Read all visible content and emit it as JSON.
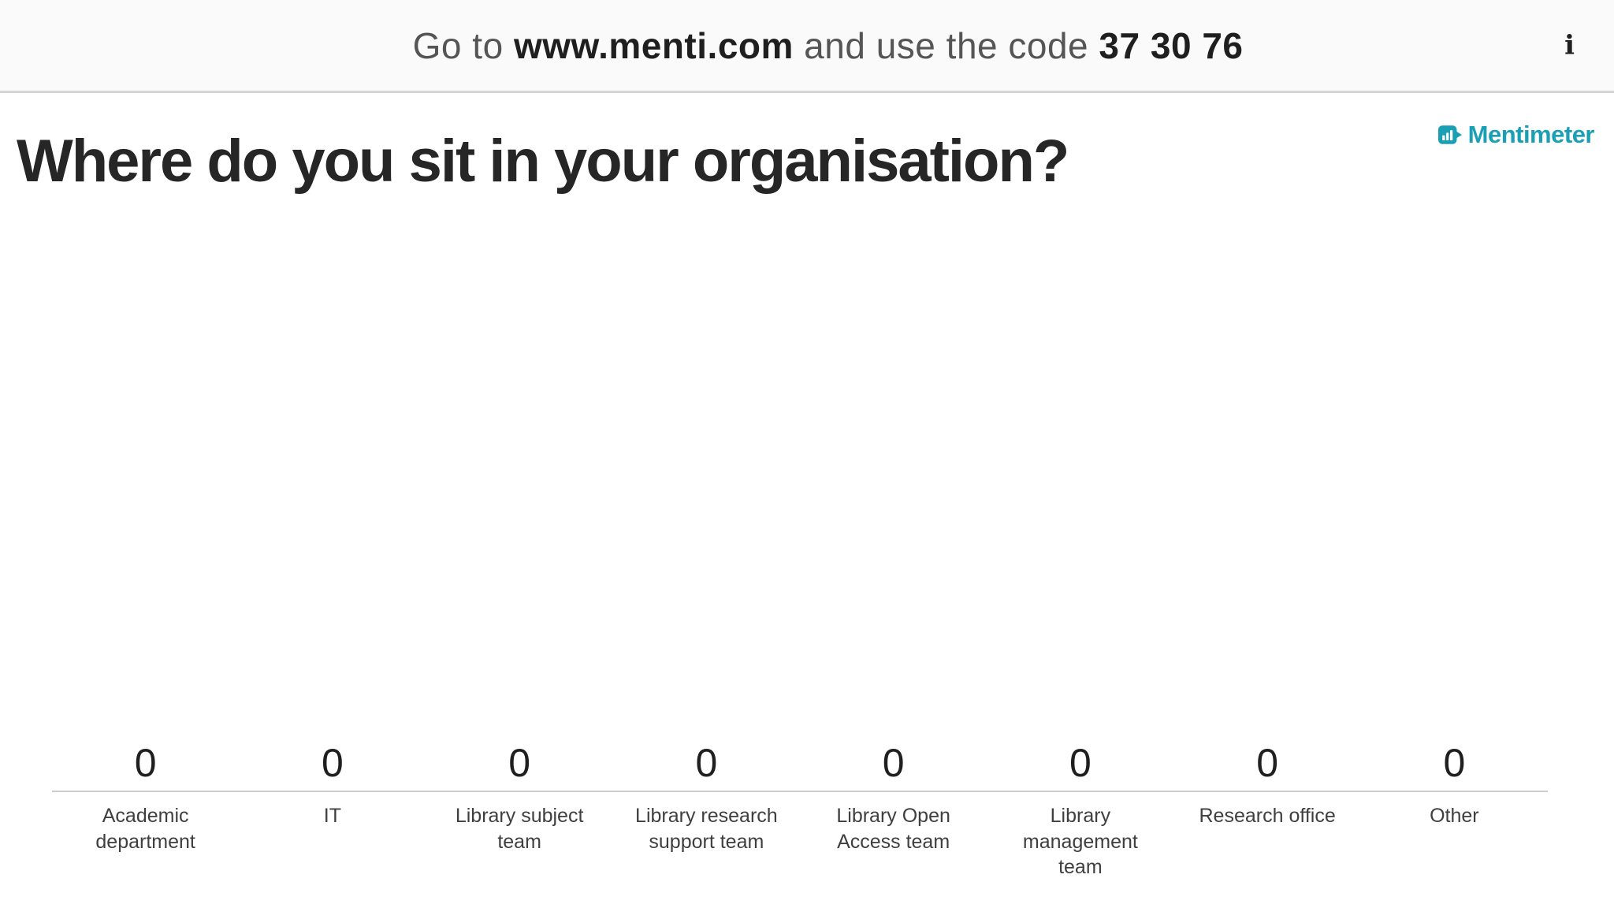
{
  "top_bar": {
    "instruction_prefix": "Go to ",
    "url": "www.menti.com",
    "instruction_middle": " and use the code ",
    "code": "37 30 76",
    "info_icon_glyph": "i"
  },
  "header": {
    "title": "Where do you sit in your organisation?",
    "brand_name": "Mentimeter"
  },
  "chart_data": {
    "type": "bar",
    "title": "Where do you sit in your organisation?",
    "categories": [
      "Academic department",
      "IT",
      "Library subject team",
      "Library research support team",
      "Library Open Access team",
      "Library management team",
      "Research office",
      "Other"
    ],
    "values": [
      0,
      0,
      0,
      0,
      0,
      0,
      0,
      0
    ],
    "xlabel": "",
    "ylabel": "",
    "ylim": [
      0,
      1
    ],
    "grid": false,
    "legend": false,
    "value_labels_shown": true,
    "axis_line_shown": true
  },
  "colors": {
    "brand_teal": "#1a9fb4",
    "title": "#262626",
    "bar_text": "#555555",
    "bar_text_bold": "#1f1f1f",
    "axis_line": "#cdcdcd",
    "category_label": "#3f3f3f",
    "top_bar_bg": "#fafafa",
    "top_bar_border": "#d5d5d5"
  }
}
